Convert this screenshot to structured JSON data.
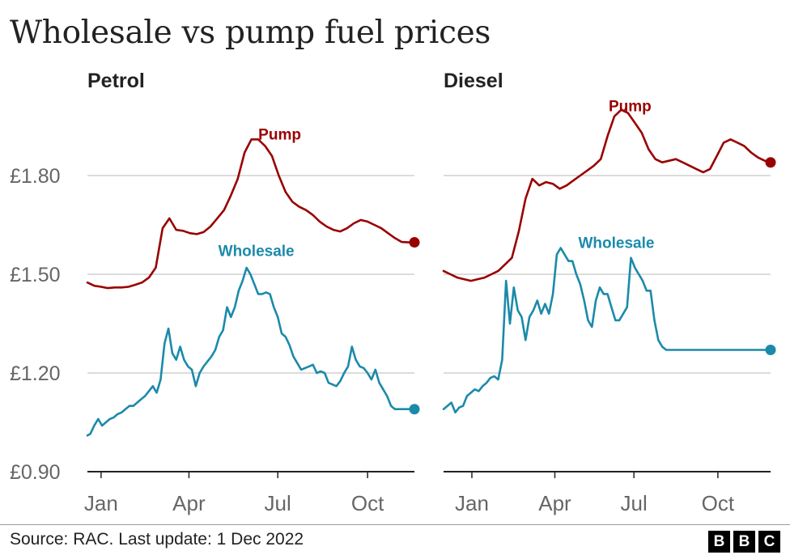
{
  "title": "Wholesale vs pump fuel prices",
  "source": "Source: RAC. Last update: 1 Dec 2022",
  "logo": [
    "B",
    "B",
    "C"
  ],
  "colors": {
    "pump": "#990000",
    "wholesale": "#1b8aaa",
    "grid": "#c8c8c8",
    "axis": "#222222"
  },
  "chart_data": [
    {
      "type": "line",
      "title": "Petrol",
      "xlabel": "",
      "ylabel": "",
      "ylim": [
        0.9,
        1.95
      ],
      "xlim": [
        1,
        336
      ],
      "yticks": [
        0.9,
        1.2,
        1.5,
        1.8
      ],
      "ytick_labels": [
        "£0.90",
        "£1.20",
        "£1.50",
        "£1.80"
      ],
      "xticks": [
        {
          "day": 15,
          "label": "Jan"
        },
        {
          "day": 105,
          "label": "Apr"
        },
        {
          "day": 196,
          "label": "Jul"
        },
        {
          "day": 288,
          "label": "Oct"
        }
      ],
      "series": [
        {
          "name": "Pump",
          "label_at": [
            198,
            1.91
          ],
          "x": [
            1,
            8,
            15,
            22,
            29,
            36,
            43,
            50,
            57,
            64,
            71,
            78,
            85,
            92,
            99,
            106,
            113,
            120,
            127,
            134,
            141,
            148,
            155,
            162,
            169,
            176,
            183,
            190,
            197,
            204,
            211,
            218,
            225,
            232,
            239,
            246,
            253,
            260,
            267,
            274,
            281,
            288,
            295,
            302,
            309,
            316,
            323,
            330,
            336
          ],
          "values": [
            1.475,
            1.465,
            1.462,
            1.458,
            1.46,
            1.46,
            1.462,
            1.468,
            1.475,
            1.49,
            1.52,
            1.64,
            1.67,
            1.635,
            1.632,
            1.625,
            1.622,
            1.628,
            1.645,
            1.67,
            1.695,
            1.74,
            1.79,
            1.87,
            1.91,
            1.91,
            1.89,
            1.86,
            1.8,
            1.75,
            1.72,
            1.705,
            1.695,
            1.68,
            1.66,
            1.645,
            1.635,
            1.63,
            1.64,
            1.655,
            1.665,
            1.66,
            1.65,
            1.64,
            1.625,
            1.61,
            1.598,
            1.597,
            1.597
          ]
        },
        {
          "name": "Wholesale",
          "label_at": [
            174,
            1.555
          ],
          "x": [
            1,
            4,
            8,
            12,
            16,
            20,
            24,
            28,
            32,
            36,
            40,
            44,
            48,
            52,
            56,
            60,
            64,
            68,
            72,
            76,
            80,
            84,
            88,
            92,
            96,
            100,
            104,
            108,
            112,
            116,
            120,
            124,
            128,
            132,
            136,
            140,
            144,
            148,
            152,
            156,
            160,
            164,
            168,
            172,
            176,
            180,
            184,
            188,
            192,
            196,
            200,
            204,
            208,
            212,
            216,
            220,
            224,
            228,
            232,
            236,
            240,
            244,
            248,
            252,
            256,
            260,
            264,
            268,
            272,
            276,
            280,
            284,
            288,
            292,
            296,
            300,
            304,
            308,
            312,
            316,
            320,
            324,
            328,
            332,
            336
          ],
          "values": [
            1.01,
            1.015,
            1.04,
            1.06,
            1.04,
            1.05,
            1.06,
            1.065,
            1.075,
            1.08,
            1.09,
            1.1,
            1.1,
            1.11,
            1.12,
            1.13,
            1.145,
            1.16,
            1.14,
            1.18,
            1.29,
            1.335,
            1.26,
            1.24,
            1.28,
            1.24,
            1.22,
            1.21,
            1.16,
            1.2,
            1.22,
            1.235,
            1.25,
            1.27,
            1.31,
            1.33,
            1.4,
            1.37,
            1.4,
            1.45,
            1.48,
            1.52,
            1.5,
            1.47,
            1.44,
            1.44,
            1.445,
            1.44,
            1.4,
            1.37,
            1.32,
            1.31,
            1.285,
            1.25,
            1.23,
            1.21,
            1.215,
            1.22,
            1.225,
            1.2,
            1.205,
            1.2,
            1.17,
            1.165,
            1.16,
            1.175,
            1.2,
            1.22,
            1.28,
            1.24,
            1.22,
            1.215,
            1.2,
            1.18,
            1.21,
            1.17,
            1.15,
            1.13,
            1.1,
            1.09,
            1.09,
            1.09,
            1.09,
            1.09,
            1.09
          ]
        }
      ]
    },
    {
      "type": "line",
      "title": "Diesel",
      "xlabel": "",
      "ylabel": "",
      "ylim": [
        0.9,
        1.95
      ],
      "xlim": [
        1,
        336
      ],
      "yticks": [
        0.9,
        1.2,
        1.5,
        1.8
      ],
      "ytick_labels": [
        "£0.90",
        "£1.20",
        "£1.50",
        "£1.80"
      ],
      "xticks": [
        {
          "day": 30,
          "label": "Jan"
        },
        {
          "day": 115,
          "label": "Apr"
        },
        {
          "day": 196,
          "label": "Jul"
        },
        {
          "day": 282,
          "label": "Oct"
        }
      ],
      "series": [
        {
          "name": "Pump",
          "label_at": [
            192,
            1.995
          ],
          "x": [
            1,
            8,
            15,
            22,
            29,
            36,
            43,
            50,
            57,
            64,
            71,
            78,
            85,
            92,
            99,
            106,
            113,
            120,
            127,
            134,
            141,
            148,
            155,
            162,
            169,
            176,
            183,
            190,
            197,
            204,
            211,
            218,
            225,
            232,
            239,
            246,
            253,
            260,
            267,
            274,
            281,
            288,
            295,
            302,
            309,
            316,
            323,
            330,
            336
          ],
          "values": [
            1.51,
            1.5,
            1.49,
            1.485,
            1.48,
            1.485,
            1.49,
            1.5,
            1.51,
            1.53,
            1.55,
            1.63,
            1.73,
            1.79,
            1.77,
            1.78,
            1.775,
            1.76,
            1.77,
            1.785,
            1.8,
            1.815,
            1.83,
            1.85,
            1.92,
            1.98,
            2.0,
            1.99,
            1.96,
            1.93,
            1.88,
            1.85,
            1.84,
            1.845,
            1.85,
            1.84,
            1.83,
            1.82,
            1.81,
            1.82,
            1.86,
            1.9,
            1.91,
            1.9,
            1.89,
            1.87,
            1.855,
            1.845,
            1.84
          ]
        },
        {
          "name": "Wholesale",
          "label_at": [
            178,
            1.58
          ],
          "x": [
            1,
            5,
            9,
            13,
            17,
            21,
            25,
            29,
            33,
            37,
            41,
            45,
            49,
            53,
            57,
            61,
            65,
            69,
            73,
            77,
            81,
            85,
            89,
            93,
            97,
            101,
            105,
            109,
            113,
            117,
            121,
            125,
            129,
            133,
            137,
            141,
            145,
            149,
            153,
            157,
            161,
            165,
            169,
            173,
            177,
            181,
            185,
            189,
            193,
            197,
            201,
            205,
            209,
            213,
            217,
            221,
            225,
            229,
            233,
            237,
            241,
            245,
            249,
            253,
            257,
            261,
            265,
            269,
            273,
            277,
            281,
            285,
            289,
            293,
            297,
            301,
            305,
            309,
            313,
            317,
            321,
            325,
            329,
            333,
            336
          ],
          "values": [
            1.09,
            1.1,
            1.11,
            1.08,
            1.095,
            1.1,
            1.13,
            1.14,
            1.15,
            1.145,
            1.16,
            1.17,
            1.185,
            1.19,
            1.18,
            1.24,
            1.48,
            1.35,
            1.46,
            1.39,
            1.37,
            1.3,
            1.37,
            1.39,
            1.42,
            1.38,
            1.41,
            1.38,
            1.44,
            1.56,
            1.58,
            1.56,
            1.54,
            1.54,
            1.5,
            1.47,
            1.42,
            1.36,
            1.34,
            1.42,
            1.46,
            1.44,
            1.44,
            1.4,
            1.36,
            1.36,
            1.38,
            1.4,
            1.55,
            1.52,
            1.5,
            1.48,
            1.45,
            1.45,
            1.36,
            1.3,
            1.28,
            1.27,
            1.27,
            1.27,
            1.27,
            1.27,
            1.27,
            1.27,
            1.27,
            1.27,
            1.27,
            1.27,
            1.27,
            1.27,
            1.27,
            1.27,
            1.27,
            1.27,
            1.27,
            1.27,
            1.27,
            1.27,
            1.27,
            1.27,
            1.27,
            1.27,
            1.27,
            1.27,
            1.27
          ]
        }
      ]
    }
  ]
}
